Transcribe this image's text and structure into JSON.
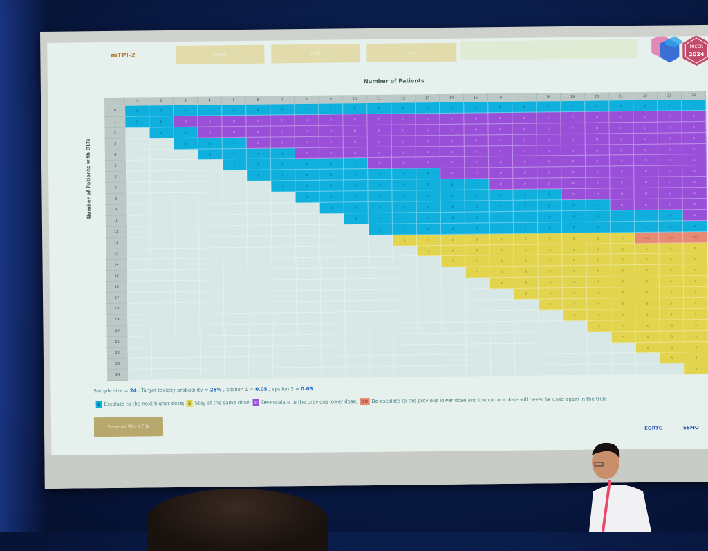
{
  "slide": {
    "app_title": "mTPI-2",
    "tabs": [
      "mTPI",
      "CCD",
      "3+3"
    ],
    "badge": {
      "line1": "MICCR",
      "line2": "2024"
    }
  },
  "table": {
    "top_title": "Number of Patients",
    "left_title": "Number of Patients with DLTs",
    "columns": [
      "1",
      "2",
      "3",
      "4",
      "5",
      "6",
      "7",
      "8",
      "9",
      "10",
      "11",
      "12",
      "13",
      "14",
      "15",
      "16",
      "17",
      "18",
      "19",
      "20",
      "21",
      "22",
      "23",
      "24"
    ],
    "rows": [
      "0",
      "1",
      "2",
      "3",
      "4",
      "5",
      "6",
      "7",
      "8",
      "9",
      "10",
      "11",
      "12",
      "13",
      "14",
      "15",
      "16",
      "17",
      "18",
      "19",
      "20",
      "21",
      "22",
      "23",
      "24"
    ],
    "codes": {
      "E": "E",
      "S": "S",
      "D": "D",
      "DU": "DU"
    },
    "colors": {
      "E": "#0fb0de",
      "S": "#e3d44e",
      "D": "#9a4fd9",
      "DU": "#e88a73",
      "NA": "#d7e8e6"
    },
    "s_start": [
      2,
      3,
      4,
      6,
      8,
      11,
      14,
      16,
      19,
      21,
      24,
      99
    ],
    "d_start": [
      1,
      2,
      2,
      3,
      5,
      7,
      9,
      11,
      13,
      16,
      18,
      20,
      22
    ]
  },
  "notes": {
    "line_prefix": "Sample size = ",
    "sample_size": "24",
    "ttp_label": " ; Target toxicity probability = ",
    "ttp": "25%",
    "e1_label": " , epsilon 1 = ",
    "e1": "0.05",
    "e2_label": " , epsilon 2 = ",
    "e2": "0.05"
  },
  "legend": {
    "e_text": "Escalate to the next higher dose;",
    "s_text": "Stay at the same dose;",
    "d_text": "De-escalate to the previous lower dose;",
    "du_text": "De-escalate to the previous lower dose and the current dose will never be used again in the trial;"
  },
  "save_button": "Save as Word File",
  "sponsors": [
    "EORTC",
    "ESMO"
  ]
}
